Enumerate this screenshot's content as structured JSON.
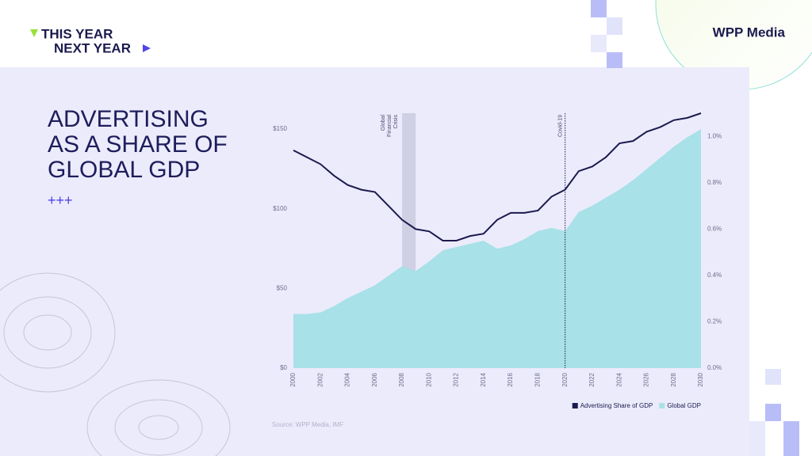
{
  "header": {
    "logo_lines": [
      "THIS YEAR",
      "NEXT YEAR"
    ],
    "brand": "WPP Media"
  },
  "title_lines": [
    "ADVERTISING",
    "AS A SHARE OF",
    "GLOBAL GDP"
  ],
  "decoration": "+++",
  "source": "Source: WPP Media, IMF",
  "chart_data": {
    "type": "line",
    "x": [
      2000,
      2001,
      2002,
      2003,
      2004,
      2005,
      2006,
      2007,
      2008,
      2009,
      2010,
      2011,
      2012,
      2013,
      2014,
      2015,
      2016,
      2017,
      2018,
      2019,
      2020,
      2021,
      2022,
      2023,
      2024,
      2025,
      2026,
      2027,
      2028,
      2029,
      2030
    ],
    "series": [
      {
        "name": "Advertising Share of GDP",
        "type": "line",
        "axis": "y2",
        "color": "#1b1a4e",
        "values": [
          0.94,
          0.91,
          0.88,
          0.83,
          0.79,
          0.77,
          0.76,
          0.7,
          0.64,
          0.6,
          0.59,
          0.55,
          0.55,
          0.57,
          0.58,
          0.64,
          0.67,
          0.67,
          0.68,
          0.74,
          0.77,
          0.85,
          0.87,
          0.91,
          0.97,
          0.98,
          1.02,
          1.04,
          1.07,
          1.08,
          1.1
        ]
      },
      {
        "name": "Global GDP",
        "type": "area",
        "axis": "y",
        "color": "#a8e1e7",
        "values": [
          34,
          34,
          35,
          39,
          44,
          48,
          52,
          58,
          64,
          61,
          67,
          74,
          76,
          78,
          80,
          75,
          77,
          81,
          86,
          88,
          86,
          98,
          102,
          107,
          112,
          118,
          125,
          132,
          139,
          145,
          150
        ]
      }
    ],
    "xlim": [
      2000,
      2030
    ],
    "xticks": [
      2000,
      2002,
      2004,
      2006,
      2008,
      2010,
      2012,
      2014,
      2016,
      2018,
      2020,
      2022,
      2024,
      2026,
      2028,
      2030
    ],
    "ylim": [
      0,
      160
    ],
    "yticks": [
      {
        "value": 0,
        "label": "$0"
      },
      {
        "value": 50,
        "label": "$50"
      },
      {
        "value": 100,
        "label": "$100"
      },
      {
        "value": 150,
        "label": "$150"
      }
    ],
    "y2lim": [
      0,
      1.1
    ],
    "y2ticks": [
      {
        "value": 0,
        "label": "0.0%"
      },
      {
        "value": 0.2,
        "label": "0.2%"
      },
      {
        "value": 0.4,
        "label": "0.4%"
      },
      {
        "value": 0.6,
        "label": "0.6%"
      },
      {
        "value": 0.8,
        "label": "0.8%"
      },
      {
        "value": 1.0,
        "label": "1.0%"
      }
    ],
    "shaded_regions": [
      {
        "text_lines": [
          "Global",
          "Financial",
          "Crisis"
        ],
        "x": [
          2008,
          2009
        ],
        "color": "#c9c9de"
      }
    ],
    "vlines": [
      {
        "text": "Covid-19",
        "x": 2020,
        "style": "dotted"
      }
    ],
    "legend": "bottom-right"
  }
}
